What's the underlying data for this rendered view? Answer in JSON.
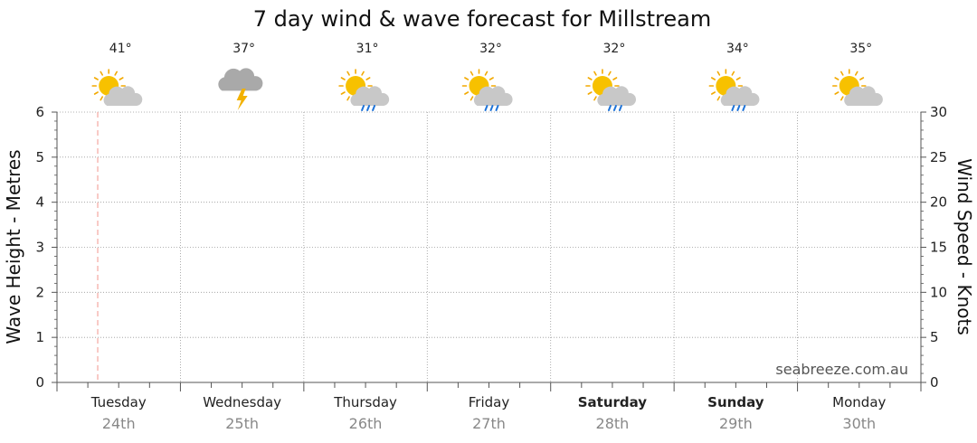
{
  "chart_data": {
    "type": "line",
    "title": "7 day wind & wave forecast for Millstream",
    "ylabel_left": "Wave Height - Metres",
    "ylabel_right": "Wind Speed - Knots",
    "ylim_left": [
      0,
      6
    ],
    "ylim_right": [
      0,
      30
    ],
    "left_ticks": [
      "0",
      "1",
      "2",
      "3",
      "4",
      "5",
      "6"
    ],
    "right_ticks": [
      "0",
      "5",
      "10",
      "15",
      "20",
      "25",
      "30"
    ],
    "grid": true,
    "current_time_marker_day": 0.33,
    "days": [
      {
        "day": "Tuesday",
        "date": "24th",
        "temp": "41°",
        "weather": "partly-cloudy-icon",
        "bold": false
      },
      {
        "day": "Wednesday",
        "date": "25th",
        "temp": "37°",
        "weather": "thunderstorm-icon",
        "bold": false
      },
      {
        "day": "Thursday",
        "date": "26th",
        "temp": "31°",
        "weather": "sun-showers-icon",
        "bold": false
      },
      {
        "day": "Friday",
        "date": "27th",
        "temp": "32°",
        "weather": "sun-showers-icon",
        "bold": false
      },
      {
        "day": "Saturday",
        "date": "28th",
        "temp": "32°",
        "weather": "sun-showers-icon",
        "bold": true
      },
      {
        "day": "Sunday",
        "date": "29th",
        "temp": "34°",
        "weather": "sun-showers-icon",
        "bold": true
      },
      {
        "day": "Monday",
        "date": "30th",
        "temp": "35°",
        "weather": "partly-cloudy-icon",
        "bold": false
      }
    ],
    "series": []
  },
  "watermark": "seabreeze.com.au",
  "colors": {
    "sun": "#f7c100",
    "sun_ray": "#f2a900",
    "cloud": "#c8c8c8",
    "storm_cloud": "#a9a9a9",
    "lightning": "#f2b100",
    "rain": "#1e73d8",
    "now_line": "#f4a6a0",
    "grid": "#999999"
  }
}
